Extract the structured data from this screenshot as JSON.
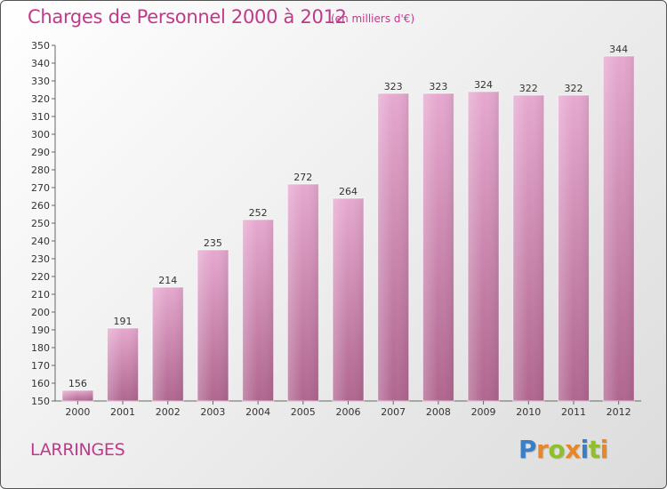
{
  "header": {
    "title": "Charges de Personnel 2000 à 2012",
    "subtitle": "(en milliers d'€)"
  },
  "footer": {
    "place": "LARRINGES",
    "logo": [
      "P",
      "r",
      "o",
      "x",
      "i",
      "t",
      "i"
    ]
  },
  "colors": {
    "accent": "#c0398a",
    "bar_top": "#e6a8cf",
    "bar_bottom": "#b0668f",
    "logo": [
      "#3a7fc4",
      "#e8862a",
      "#8fbf2a",
      "#e8862a",
      "#3a7fc4",
      "#8fbf2a",
      "#e8862a"
    ]
  },
  "chart_data": {
    "type": "bar",
    "title": "Charges de Personnel 2000 à 2012",
    "subtitle": "(en milliers d'€)",
    "categories": [
      "2000",
      "2001",
      "2002",
      "2003",
      "2004",
      "2005",
      "2006",
      "2007",
      "2008",
      "2009",
      "2010",
      "2011",
      "2012"
    ],
    "values": [
      156,
      191,
      214,
      235,
      252,
      272,
      264,
      323,
      323,
      324,
      322,
      322,
      344
    ],
    "ylim": [
      150,
      350
    ],
    "yticks": [
      150,
      160,
      170,
      180,
      190,
      200,
      210,
      220,
      230,
      240,
      250,
      260,
      270,
      280,
      290,
      300,
      310,
      320,
      330,
      340,
      350
    ],
    "grid": false,
    "data_labels": true
  }
}
